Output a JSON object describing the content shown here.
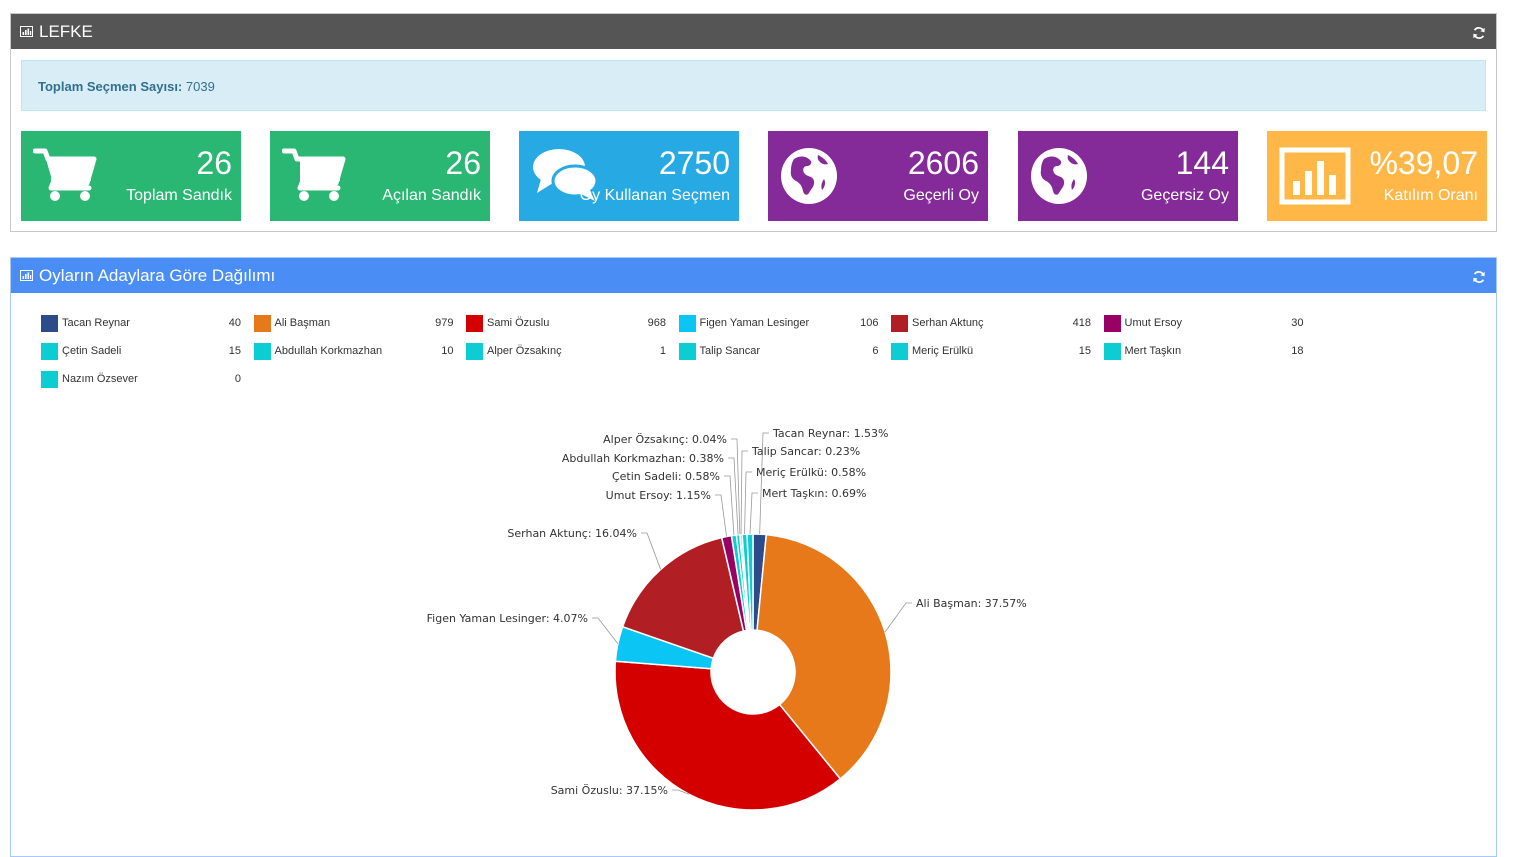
{
  "top_panel": {
    "title": "LEFKE",
    "info_label": "Toplam Seçmen Sayısı:",
    "info_value": "7039",
    "tiles": [
      {
        "value": "26",
        "label": "Toplam Sandık",
        "icon": "cart-icon",
        "color": "#2ab673"
      },
      {
        "value": "26",
        "label": "Açılan Sandık",
        "icon": "cart-icon",
        "color": "#2ab673"
      },
      {
        "value": "2750",
        "label": "Oy Kullanan Seçmen",
        "icon": "comments-icon",
        "color": "#27a9e3"
      },
      {
        "value": "2606",
        "label": "Geçerli Oy",
        "icon": "globe-icon",
        "color": "#852b99"
      },
      {
        "value": "144",
        "label": "Geçersiz Oy",
        "icon": "globe-icon",
        "color": "#852b99"
      },
      {
        "value": "%39,07",
        "label": "Katılım Oranı",
        "icon": "bar-chart-icon",
        "color": "#ffb848"
      }
    ]
  },
  "chart_panel": {
    "title": "Oyların Adaylara Göre Dağılımı"
  },
  "chart_data": {
    "type": "pie",
    "donut": true,
    "legend_position": "top",
    "series": [
      {
        "name": "Tacan Reynar",
        "value": 40,
        "percent": "1.53%",
        "color": "#2d4a8a"
      },
      {
        "name": "Ali Başman",
        "value": 979,
        "percent": "37.57%",
        "color": "#e8791a"
      },
      {
        "name": "Sami Özuslu",
        "value": 968,
        "percent": "37.15%",
        "color": "#d40000"
      },
      {
        "name": "Figen Yaman Lesinger",
        "value": 106,
        "percent": "4.07%",
        "color": "#0bc5f4"
      },
      {
        "name": "Serhan Aktunç",
        "value": 418,
        "percent": "16.04%",
        "color": "#b11f24"
      },
      {
        "name": "Umut Ersoy",
        "value": 30,
        "percent": "1.15%",
        "color": "#990066"
      },
      {
        "name": "Çetin Sadeli",
        "value": 15,
        "percent": "0.58%",
        "color": "#0ccdd1"
      },
      {
        "name": "Abdullah Korkmazhan",
        "value": 10,
        "percent": "0.38%",
        "color": "#0ccdd1"
      },
      {
        "name": "Alper Özsakınç",
        "value": 1,
        "percent": "0.04%",
        "color": "#0ccdd1"
      },
      {
        "name": "Talip Sancar",
        "value": 6,
        "percent": "0.23%",
        "color": "#0ccdd1"
      },
      {
        "name": "Meriç Erülkü",
        "value": 15,
        "percent": "0.58%",
        "color": "#0ccdd1"
      },
      {
        "name": "Mert Taşkın",
        "value": 18,
        "percent": "0.69%",
        "color": "#0ccdd1"
      },
      {
        "name": "Nazım Özsever",
        "value": 0,
        "percent": "",
        "color": "#0ccdd1"
      }
    ]
  }
}
